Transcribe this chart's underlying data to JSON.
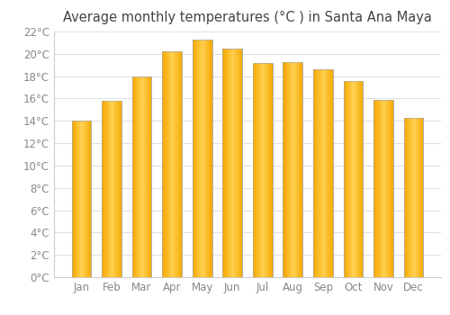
{
  "title": "Average monthly temperatures (°C ) in Santa Ana Maya",
  "months": [
    "Jan",
    "Feb",
    "Mar",
    "Apr",
    "May",
    "Jun",
    "Jul",
    "Aug",
    "Sep",
    "Oct",
    "Nov",
    "Dec"
  ],
  "values": [
    14.0,
    15.8,
    18.0,
    20.2,
    21.3,
    20.5,
    19.2,
    19.3,
    18.6,
    17.6,
    15.9,
    14.3
  ],
  "bar_color_light": "#FFD050",
  "bar_color_dark": "#F5A800",
  "bar_edge_color": "#aaaaaa",
  "background_color": "#ffffff",
  "plot_bg_color": "#ffffff",
  "grid_color": "#e0e0e0",
  "ylim": [
    0,
    22
  ],
  "ytick_step": 2,
  "title_fontsize": 10.5,
  "tick_fontsize": 8.5,
  "tick_color": "#888888",
  "label_color": "#888888",
  "title_color": "#444444"
}
